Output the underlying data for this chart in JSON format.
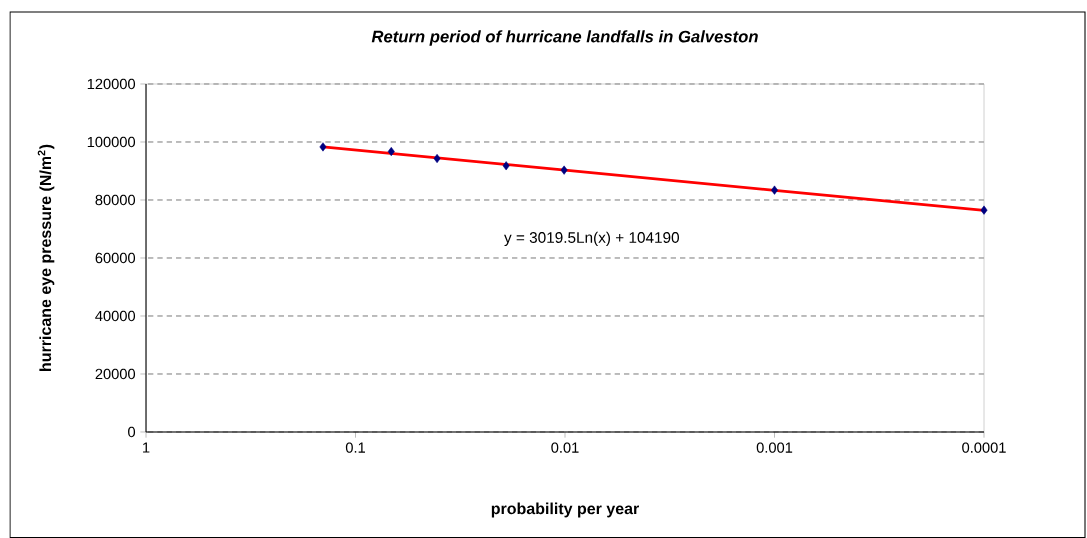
{
  "chart_data": {
    "type": "scatter",
    "title": "Return period of hurricane landfalls in Galveston",
    "xlabel": "probability per year",
    "ylabel": "hurricane eye pressure (N/m$^{2}$)",
    "log": "x",
    "xlim": [
      1,
      0.0001
    ],
    "xticks": [
      1,
      0.1,
      0.01,
      0.001,
      0.0001
    ],
    "ylim": [
      0,
      120000
    ],
    "yticks": [
      0,
      20000,
      40000,
      60000,
      80000,
      100000,
      120000
    ],
    "grid": "y",
    "marker": "diamond",
    "annotations": [
      "y = 3019.5Ln(x) + 104190"
    ],
    "series": [
      {
        "color": "#000080",
        "x": [
          0.143,
          0.0675,
          0.0408,
          0.0191,
          0.0101,
          0.001,
          0.0001
        ],
        "values": [
          98300,
          96700,
          94300,
          91800,
          90300,
          83400,
          76500
        ]
      },
      {
        "type": "line",
        "color": "#ff0000",
        "marker": "none",
        "x": [
          0.143,
          0.01,
          0.001,
          0.0001
        ],
        "values": [
          98300,
          90300,
          83300,
          76400
        ]
      }
    ]
  }
}
